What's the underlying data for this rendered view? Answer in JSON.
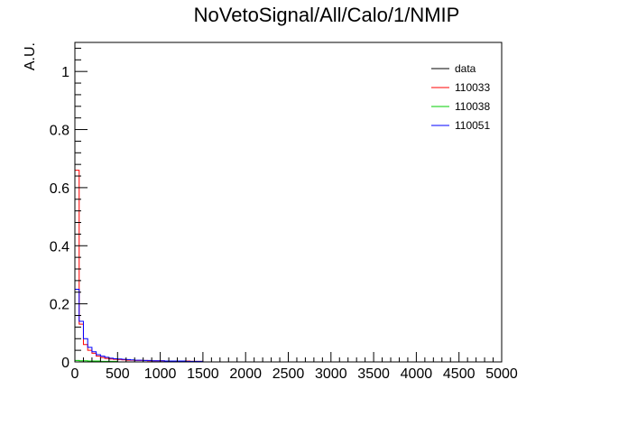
{
  "chart_data": {
    "type": "line",
    "title": "NoVetoSignal/All/Calo/1/NMIP",
    "xlabel": "",
    "ylabel": "A.U.",
    "xlim": [
      0,
      5000
    ],
    "ylim": [
      0,
      1.1
    ],
    "x_ticks": [
      "0",
      "500",
      "1000",
      "1500",
      "2000",
      "2500",
      "3000",
      "3500",
      "4000",
      "4500",
      "5000"
    ],
    "y_ticks": [
      "0",
      "0.2",
      "0.4",
      "0.6",
      "0.8",
      "1"
    ],
    "bin_width": 50,
    "grid": false,
    "legend_position": "top-right",
    "series": [
      {
        "name": "data",
        "color": "#000000",
        "values": []
      },
      {
        "name": "110033",
        "color": "#ff0000",
        "values": [
          0.66,
          0.13,
          0.06,
          0.04,
          0.03,
          0.02,
          0.015,
          0.012,
          0.01,
          0.009,
          0.008,
          0.007,
          0.006,
          0.006,
          0.005,
          0.005,
          0.005,
          0.004,
          0.004,
          0.004,
          0.004,
          0.003,
          0.003,
          0.003,
          0.003,
          0.003,
          0.003,
          0.002,
          0.002,
          0.002
        ]
      },
      {
        "name": "110038",
        "color": "#00cc00",
        "values": [
          0.005,
          0.004,
          0.004,
          0.003,
          0.003,
          0.003,
          0.002,
          0.002,
          0.002,
          0.002
        ]
      },
      {
        "name": "110051",
        "color": "#0000ff",
        "values": [
          0.25,
          0.14,
          0.08,
          0.05,
          0.035,
          0.025,
          0.02,
          0.016,
          0.013,
          0.011,
          0.01,
          0.009,
          0.008,
          0.007,
          0.006,
          0.006,
          0.005,
          0.005,
          0.004,
          0.004,
          0.004,
          0.003,
          0.003,
          0.003,
          0.003,
          0.003,
          0.002,
          0.002,
          0.002,
          0.002
        ]
      }
    ]
  }
}
